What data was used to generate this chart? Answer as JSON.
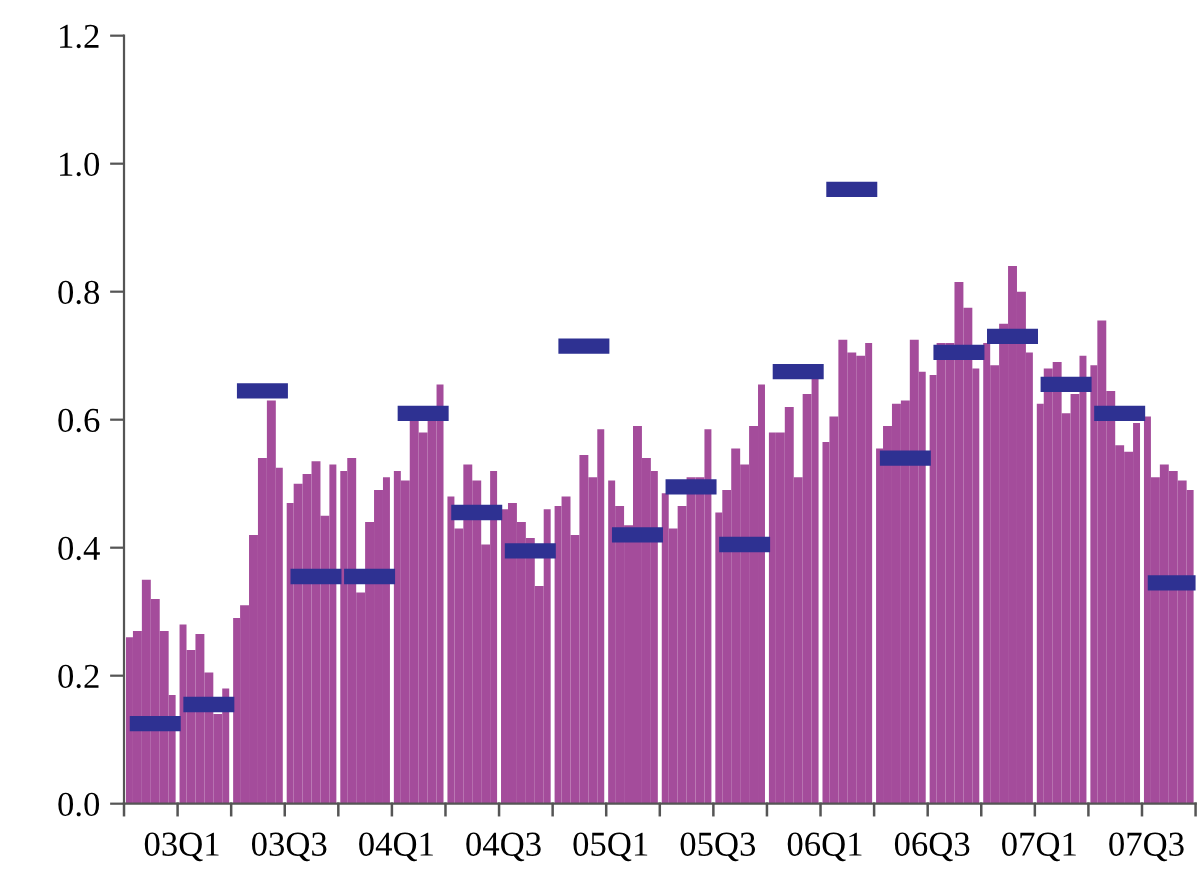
{
  "chart_data": {
    "type": "bar",
    "categories": [
      null,
      null,
      null,
      null,
      null,
      null,
      "03Q1",
      null,
      null,
      null,
      null,
      null,
      null,
      null,
      null,
      null,
      null,
      null,
      "03Q3",
      null,
      null,
      null,
      null,
      null,
      null,
      null,
      null,
      null,
      null,
      null,
      "04Q1",
      null,
      null,
      null,
      null,
      null,
      null,
      null,
      null,
      null,
      null,
      null,
      "04Q3",
      null,
      null,
      null,
      null,
      null,
      null,
      null,
      null,
      null,
      null,
      null,
      "05Q1",
      null,
      null,
      null,
      null,
      null,
      null,
      null,
      null,
      null,
      null,
      null,
      "05Q3",
      null,
      null,
      null,
      null,
      null,
      null,
      null,
      null,
      null,
      null,
      null,
      "06Q1",
      null,
      null,
      null,
      null,
      null,
      null,
      null,
      null,
      null,
      null,
      null,
      "06Q3",
      null,
      null,
      null,
      null,
      null,
      null,
      null,
      null,
      null,
      null,
      null,
      "07Q1",
      null,
      null,
      null,
      null,
      null,
      null,
      null,
      null,
      null,
      null,
      null,
      "07Q3",
      null,
      null,
      null,
      null,
      null
    ],
    "ylim": [
      0,
      1.2
    ],
    "yticks": [
      {
        "value": 0,
        "label": "0.0"
      },
      {
        "value": 0.2,
        "label": "0.2"
      },
      {
        "value": 0.4,
        "label": "0.4"
      },
      {
        "value": 0.6,
        "label": "0.6"
      },
      {
        "value": 0.8,
        "label": "0.8"
      },
      {
        "value": 1.0,
        "label": "1.0"
      },
      {
        "value": 1.2,
        "label": "1.2"
      }
    ],
    "series": [
      {
        "color": "#a44c9b",
        "values": [
          0.26,
          0.27,
          0.35,
          0.32,
          0.27,
          0.17,
          0.28,
          0.24,
          0.265,
          0.205,
          0.14,
          0.18,
          0.29,
          0.31,
          0.42,
          0.54,
          0.63,
          0.525,
          0.47,
          0.5,
          0.515,
          0.535,
          0.45,
          0.53,
          0.52,
          0.54,
          0.33,
          0.44,
          0.49,
          0.51,
          0.52,
          0.505,
          0.6,
          0.58,
          0.6,
          0.655,
          0.48,
          0.43,
          0.53,
          0.505,
          0.405,
          0.52,
          0.46,
          0.47,
          0.44,
          0.415,
          0.34,
          0.46,
          0.465,
          0.48,
          0.42,
          0.545,
          0.51,
          0.585,
          0.505,
          0.465,
          0.435,
          0.59,
          0.54,
          0.52,
          0.485,
          0.43,
          0.465,
          0.51,
          0.51,
          0.585,
          0.455,
          0.49,
          0.555,
          0.53,
          0.59,
          0.655,
          0.58,
          0.58,
          0.62,
          0.51,
          0.64,
          0.665,
          0.565,
          0.605,
          0.725,
          0.705,
          0.7,
          0.72,
          0.555,
          0.59,
          0.625,
          0.63,
          0.725,
          0.675,
          0.67,
          0.72,
          0.72,
          0.815,
          0.775,
          0.68,
          0.72,
          0.685,
          0.75,
          0.84,
          0.8,
          0.705,
          0.625,
          0.68,
          0.69,
          0.61,
          0.64,
          0.7,
          0.685,
          0.755,
          0.645,
          0.56,
          0.55,
          0.595,
          0.605,
          0.51,
          0.53,
          0.52,
          0.505,
          0.49
        ]
      },
      {
        "type": "line",
        "color": "#2e3192",
        "line_style": "solid",
        "values": [
          null,
          0.125,
          0.125,
          0.125,
          0.125,
          0.125,
          null,
          0.155,
          0.155,
          0.155,
          0.155,
          0.155,
          null,
          0.645,
          0.645,
          0.645,
          0.645,
          0.645,
          null,
          0.355,
          0.355,
          0.355,
          0.355,
          0.355,
          null,
          0.355,
          0.355,
          0.355,
          0.355,
          0.355,
          null,
          0.61,
          0.61,
          0.61,
          0.61,
          0.61,
          null,
          0.455,
          0.455,
          0.455,
          0.455,
          0.455,
          null,
          0.395,
          0.395,
          0.395,
          0.395,
          0.395,
          null,
          0.715,
          0.715,
          0.715,
          0.715,
          0.715,
          null,
          0.42,
          0.42,
          0.42,
          0.42,
          0.42,
          null,
          0.495,
          0.495,
          0.495,
          0.495,
          0.495,
          null,
          0.405,
          0.405,
          0.405,
          0.405,
          0.405,
          null,
          0.675,
          0.675,
          0.675,
          0.675,
          0.675,
          null,
          0.96,
          0.96,
          0.96,
          0.96,
          0.96,
          null,
          0.54,
          0.54,
          0.54,
          0.54,
          0.54,
          null,
          0.705,
          0.705,
          0.705,
          0.705,
          0.705,
          null,
          0.73,
          0.73,
          0.73,
          0.73,
          0.73,
          null,
          0.655,
          0.655,
          0.655,
          0.655,
          0.655,
          null,
          0.61,
          0.61,
          0.61,
          0.61,
          0.61,
          null,
          0.345,
          0.345,
          0.345,
          0.345,
          0.345
        ]
      }
    ]
  }
}
